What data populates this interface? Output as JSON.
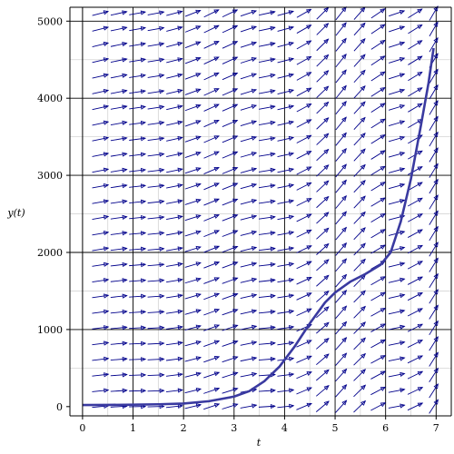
{
  "chart_data": {
    "type": "line",
    "xlabel": "t",
    "ylabel": "y(t)",
    "xlim": [
      -0.25,
      7.3
    ],
    "ylim": [
      -120,
      5180
    ],
    "x_ticks": [
      0,
      1,
      2,
      3,
      4,
      5,
      6,
      7
    ],
    "x_tick_labels": [
      "0",
      "1",
      "2",
      "3",
      "4",
      "5",
      "6",
      "7"
    ],
    "y_ticks": [
      0,
      1000,
      2000,
      3000,
      4000,
      5000
    ],
    "y_tick_labels": [
      "0",
      "1000",
      "2000",
      "3000",
      "4000",
      "5000"
    ],
    "grid": true,
    "direction_field": {
      "t_start": 0.35,
      "t_end": 6.95,
      "t_count": 19,
      "y_start": 0,
      "y_end": 5100,
      "y_count": 26
    },
    "series": [
      {
        "x": [
          0,
          0.5,
          1,
          1.5,
          2,
          2.5,
          3,
          3.3,
          3.6,
          3.9,
          4.2,
          4.5,
          4.8,
          5.0,
          5.3,
          5.6,
          5.9,
          6.1,
          6.3,
          6.5,
          6.7,
          6.85,
          6.95
        ],
        "y": [
          20,
          22,
          25,
          30,
          40,
          70,
          130,
          200,
          330,
          520,
          780,
          1080,
          1350,
          1480,
          1620,
          1720,
          1840,
          2000,
          2400,
          2950,
          3650,
          4200,
          4650
        ]
      }
    ],
    "colors": {
      "arrows": "#00008b",
      "curve": "#3a3aa0",
      "grid": "#d4d4d4",
      "major_grid": "#000000"
    }
  }
}
